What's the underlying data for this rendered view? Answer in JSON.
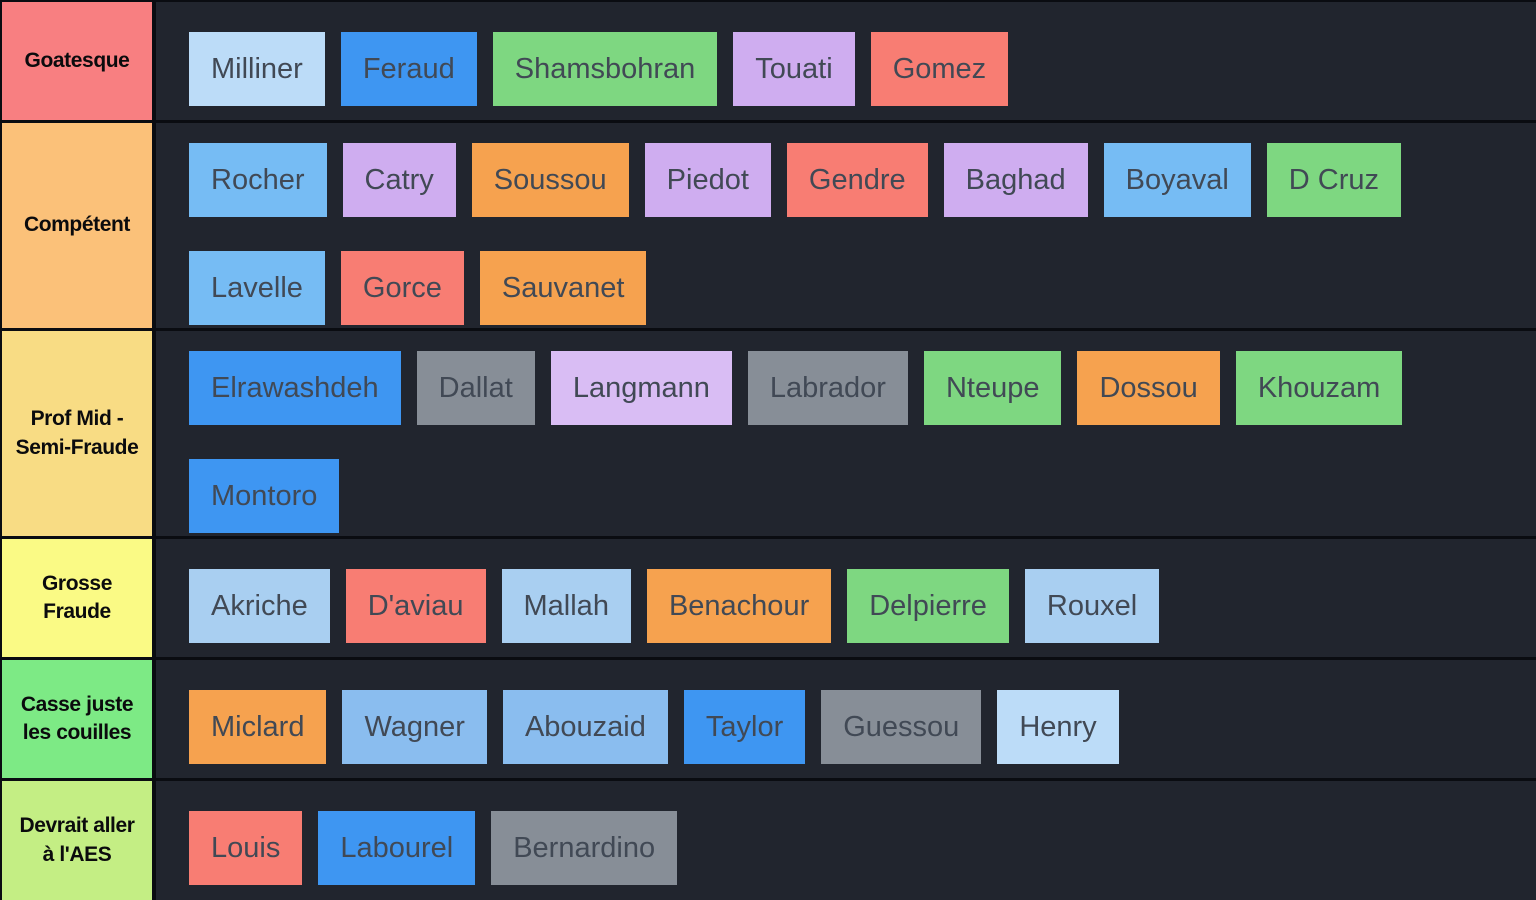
{
  "palette": {
    "row_background": "#21252e",
    "separator": "#0a0c11",
    "label_text": "#0b0b0d",
    "item_text": "#414955",
    "items": {
      "lightblue": "#bcdcf8",
      "paleblue": "#a9cff1",
      "softblue": "#8abdef",
      "skyblue": "#76bcf4",
      "blue": "#3e96f2",
      "green": "#7ed781",
      "purple": "#cfadf0",
      "lavender": "#d9bdf4",
      "red": "#f87d73",
      "orange": "#f6a24f",
      "gray": "#878e97"
    }
  },
  "tiers": [
    {
      "label": "Goatesque",
      "color": "#f87f81",
      "lines": [
        [
          {
            "name": "Milliner",
            "color": "lightblue"
          },
          {
            "name": "Feraud",
            "color": "blue"
          },
          {
            "name": "Shamsbohran",
            "color": "green"
          },
          {
            "name": "Touati",
            "color": "purple"
          },
          {
            "name": "Gomez",
            "color": "red"
          }
        ]
      ]
    },
    {
      "label": "Compétent",
      "color": "#fbc179",
      "lines": [
        [
          {
            "name": "Rocher",
            "color": "skyblue"
          },
          {
            "name": "Catry",
            "color": "purple"
          },
          {
            "name": "Soussou",
            "color": "orange"
          },
          {
            "name": "Piedot",
            "color": "purple"
          },
          {
            "name": "Gendre",
            "color": "red"
          },
          {
            "name": "Baghad",
            "color": "purple"
          },
          {
            "name": "Boyaval",
            "color": "skyblue"
          },
          {
            "name": "D Cruz",
            "color": "green"
          }
        ],
        [
          {
            "name": "Lavelle",
            "color": "skyblue"
          },
          {
            "name": "Gorce",
            "color": "red"
          },
          {
            "name": "Sauvanet",
            "color": "orange"
          }
        ]
      ]
    },
    {
      "label": "Prof Mid -\nSemi-Fraude",
      "color": "#f8dc84",
      "lines": [
        [
          {
            "name": "Elrawashdeh",
            "color": "blue"
          },
          {
            "name": "Dallat",
            "color": "gray"
          },
          {
            "name": "Langmann",
            "color": "lavender"
          },
          {
            "name": "Labrador",
            "color": "gray"
          },
          {
            "name": "Nteupe",
            "color": "green"
          },
          {
            "name": "Dossou",
            "color": "orange"
          },
          {
            "name": "Khouzam",
            "color": "green"
          }
        ],
        [
          {
            "name": "Montoro",
            "color": "blue"
          }
        ]
      ]
    },
    {
      "label": "Grosse\nFraude",
      "color": "#fafa85",
      "lines": [
        [
          {
            "name": "Akriche",
            "color": "paleblue"
          },
          {
            "name": "D'aviau",
            "color": "red"
          },
          {
            "name": "Mallah",
            "color": "paleblue"
          },
          {
            "name": "Benachour",
            "color": "orange"
          },
          {
            "name": "Delpierre",
            "color": "green"
          },
          {
            "name": "Rouxel",
            "color": "paleblue"
          }
        ]
      ]
    },
    {
      "label": "Casse juste\nles couilles",
      "color": "#7dea85",
      "lines": [
        [
          {
            "name": "Miclard",
            "color": "orange"
          },
          {
            "name": "Wagner",
            "color": "softblue"
          },
          {
            "name": "Abouzaid",
            "color": "softblue"
          },
          {
            "name": "Taylor",
            "color": "blue"
          },
          {
            "name": "Guessou",
            "color": "gray"
          },
          {
            "name": "Henry",
            "color": "lightblue"
          }
        ]
      ]
    },
    {
      "label": "Devrait aller\nà l'AES",
      "color": "#c4ee84",
      "lines": [
        [
          {
            "name": "Louis",
            "color": "red"
          },
          {
            "name": "Labourel",
            "color": "blue"
          },
          {
            "name": "Bernardino",
            "color": "gray"
          }
        ]
      ]
    }
  ]
}
